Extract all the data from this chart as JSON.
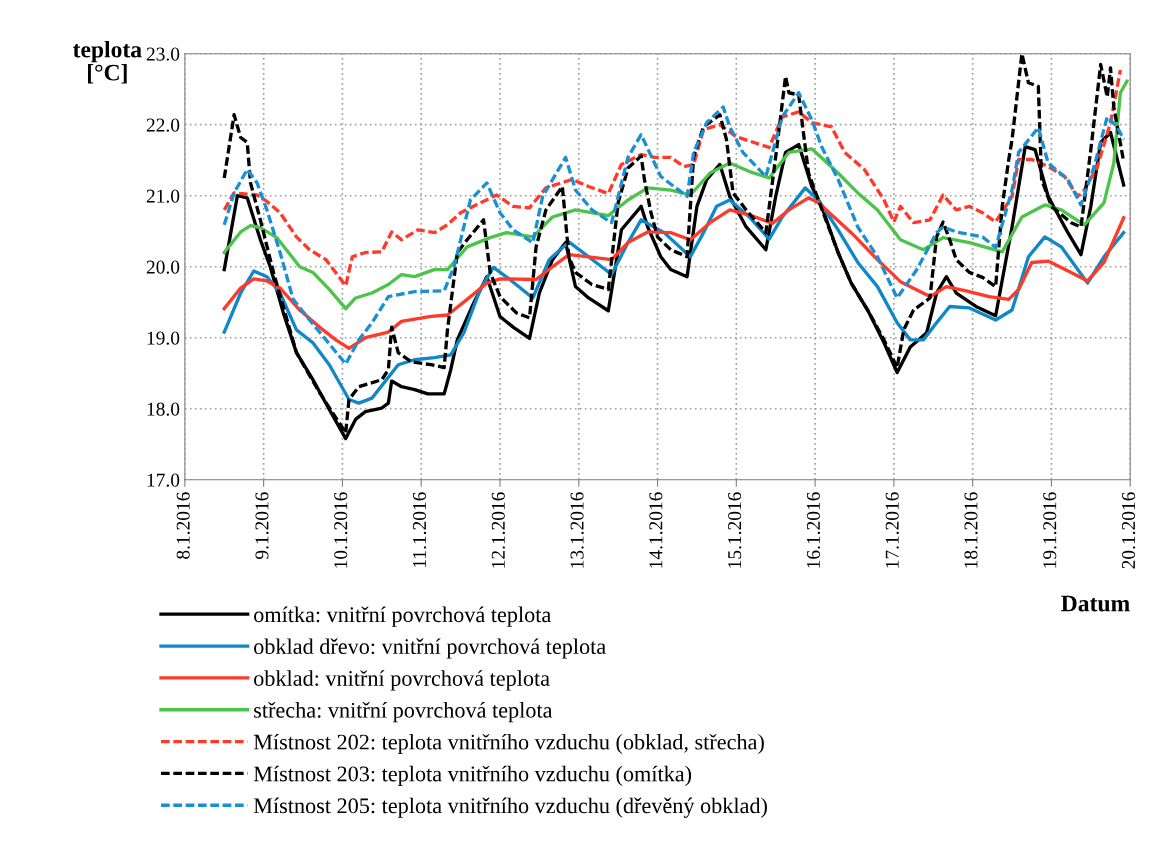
{
  "chart_data": {
    "type": "line",
    "xlabel": "Datum",
    "ylabel": "teplota\n[°C]",
    "xlim": [
      "2016-01-08",
      "2016-01-20"
    ],
    "xticks": [
      {
        "value": "2016-01-08",
        "label": "8.1.2016"
      },
      {
        "value": "2016-01-09",
        "label": "9.1.2016"
      },
      {
        "value": "2016-01-10",
        "label": "10.1.2016"
      },
      {
        "value": "2016-01-11",
        "label": "11.1.2016"
      },
      {
        "value": "2016-01-12",
        "label": "12.1.2016"
      },
      {
        "value": "2016-01-13",
        "label": "13.1.2016"
      },
      {
        "value": "2016-01-14",
        "label": "14.1.2016"
      },
      {
        "value": "2016-01-15",
        "label": "15.1.2016"
      },
      {
        "value": "2016-01-16",
        "label": "16.1.2016"
      },
      {
        "value": "2016-01-17",
        "label": "17.1.2016"
      },
      {
        "value": "2016-01-18",
        "label": "18.1.2016"
      },
      {
        "value": "2016-01-19",
        "label": "19.1.2016"
      },
      {
        "value": "2016-01-20",
        "label": "20.1.2016"
      }
    ],
    "ylim": [
      17,
      23
    ],
    "yticks": [
      {
        "value": 17,
        "label": "17.0"
      },
      {
        "value": 18,
        "label": "18.0"
      },
      {
        "value": 19,
        "label": "19.0"
      },
      {
        "value": 20,
        "label": "20.0"
      },
      {
        "value": 21,
        "label": "21.0"
      },
      {
        "value": 22,
        "label": "22.0"
      },
      {
        "value": 23,
        "label": "23.0"
      }
    ],
    "grid": true,
    "legend": "bottom",
    "marker": "none",
    "series": [
      {
        "name": "omítka: vnitřní povrchová teplota",
        "color": "#000000",
        "line_style": "solid",
        "x": [
          "2016-01-08T12:00",
          "2016-01-08T16:00",
          "2016-01-08T19:00",
          "2016-01-08T23:00",
          "2016-01-09T02:00",
          "2016-01-09T06:00",
          "2016-01-09T10:00",
          "2016-01-09T15:00",
          "2016-01-09T20:00",
          "2016-01-10T01:00",
          "2016-01-10T04:00",
          "2016-01-10T07:00",
          "2016-01-10T12:00",
          "2016-01-10T14:00",
          "2016-01-10T15:00",
          "2016-01-10T18:00",
          "2016-01-10T22:00",
          "2016-01-11T02:00",
          "2016-01-11T07:00",
          "2016-01-11T09:00",
          "2016-01-11T11:00",
          "2016-01-11T16:00",
          "2016-01-11T20:00",
          "2016-01-12T00:00",
          "2016-01-12T04:00",
          "2016-01-12T09:00",
          "2016-01-12T12:00",
          "2016-01-12T16:00",
          "2016-01-12T20:00",
          "2016-01-12T23:00",
          "2016-01-13T03:00",
          "2016-01-13T09:00",
          "2016-01-13T13:00",
          "2016-01-13T19:00",
          "2016-01-13T21:00",
          "2016-01-14T01:00",
          "2016-01-14T04:00",
          "2016-01-14T09:00",
          "2016-01-14T12:00",
          "2016-01-14T15:00",
          "2016-01-14T19:00",
          "2016-01-14T22:00",
          "2016-01-15T03:00",
          "2016-01-15T09:00",
          "2016-01-15T12:00",
          "2016-01-15T15:00",
          "2016-01-15T19:00",
          "2016-01-15T23:00",
          "2016-01-16T02:00",
          "2016-01-16T07:00",
          "2016-01-16T11:00",
          "2016-01-16T16:00",
          "2016-01-16T21:00",
          "2016-01-17T01:00",
          "2016-01-17T05:00",
          "2016-01-17T10:00",
          "2016-01-17T13:00",
          "2016-01-17T16:00",
          "2016-01-17T19:00",
          "2016-01-18T01:00",
          "2016-01-18T07:00",
          "2016-01-18T12:00",
          "2016-01-18T16:00",
          "2016-01-18T19:00",
          "2016-01-18T23:00",
          "2016-01-19T05:00",
          "2016-01-19T09:00",
          "2016-01-19T12:00",
          "2016-01-19T15:00",
          "2016-01-19T18:00",
          "2016-01-19T22:00"
        ],
        "values": [
          19.96,
          21.0,
          20.97,
          20.38,
          20.0,
          19.35,
          18.79,
          18.41,
          17.99,
          17.58,
          17.85,
          17.96,
          18.01,
          18.08,
          18.39,
          18.31,
          18.27,
          18.21,
          18.21,
          18.55,
          18.97,
          19.49,
          19.86,
          19.3,
          19.15,
          18.99,
          19.63,
          20.1,
          20.34,
          19.72,
          19.56,
          19.38,
          20.52,
          20.85,
          20.56,
          20.14,
          19.96,
          19.86,
          20.85,
          21.23,
          21.44,
          20.99,
          20.56,
          20.24,
          20.99,
          21.61,
          21.72,
          21.13,
          20.85,
          20.2,
          19.77,
          19.39,
          18.93,
          18.51,
          18.87,
          19.07,
          19.63,
          19.86,
          19.63,
          19.44,
          19.31,
          20.56,
          21.69,
          21.65,
          20.99,
          20.48,
          20.17,
          20.85,
          21.75,
          21.89,
          21.15
        ]
      },
      {
        "name": "obklad dřevo: vnitřní povrchová teplota",
        "color": "#1088c8",
        "line_style": "solid",
        "x": [
          "2016-01-08T12:00",
          "2016-01-08T17:00",
          "2016-01-08T21:00",
          "2016-01-09T01:00",
          "2016-01-09T05:00",
          "2016-01-09T10:00",
          "2016-01-09T15:00",
          "2016-01-09T20:00",
          "2016-01-10T02:00",
          "2016-01-10T05:00",
          "2016-01-10T09:00",
          "2016-01-10T17:00",
          "2016-01-10T22:00",
          "2016-01-11T04:00",
          "2016-01-11T09:00",
          "2016-01-11T13:00",
          "2016-01-11T18:00",
          "2016-01-11T22:00",
          "2016-01-12T03:00",
          "2016-01-12T10:00",
          "2016-01-12T15:00",
          "2016-01-12T21:00",
          "2016-01-13T03:00",
          "2016-01-13T10:00",
          "2016-01-13T15:00",
          "2016-01-13T19:00",
          "2016-01-14T02:00",
          "2016-01-14T10:00",
          "2016-01-14T14:00",
          "2016-01-14T18:00",
          "2016-01-14T22:00",
          "2016-01-15T04:00",
          "2016-01-15T10:00",
          "2016-01-15T14:00",
          "2016-01-15T21:00",
          "2016-01-16T01:00",
          "2016-01-16T07:00",
          "2016-01-16T13:00",
          "2016-01-16T19:00",
          "2016-01-17T01:00",
          "2016-01-17T05:00",
          "2016-01-17T09:00",
          "2016-01-17T13:00",
          "2016-01-17T17:00",
          "2016-01-17T23:00",
          "2016-01-18T07:00",
          "2016-01-18T12:00",
          "2016-01-18T17:00",
          "2016-01-18T22:00",
          "2016-01-19T03:00",
          "2016-01-19T11:00",
          "2016-01-19T16:00",
          "2016-01-19T22:00"
        ],
        "values": [
          19.08,
          19.63,
          19.94,
          19.86,
          19.63,
          19.11,
          18.93,
          18.62,
          18.13,
          18.08,
          18.15,
          18.62,
          18.69,
          18.72,
          18.76,
          19.07,
          19.68,
          19.99,
          19.82,
          19.56,
          20.1,
          20.35,
          20.14,
          19.89,
          20.34,
          20.66,
          20.48,
          20.14,
          20.48,
          20.85,
          20.94,
          20.7,
          20.39,
          20.7,
          21.11,
          20.94,
          20.52,
          20.06,
          19.72,
          19.21,
          18.97,
          18.97,
          19.21,
          19.44,
          19.42,
          19.25,
          19.39,
          20.14,
          20.42,
          20.28,
          19.77,
          20.14,
          20.48
        ]
      },
      {
        "name": "obklad: vnitřní povrchová teplota",
        "color": "#ff3a2a",
        "line_style": "solid",
        "x": [
          "2016-01-08T12:00",
          "2016-01-08T17:00",
          "2016-01-08T21:00",
          "2016-01-09T01:00",
          "2016-01-09T05:00",
          "2016-01-09T11:00",
          "2016-01-09T17:00",
          "2016-01-09T22:00",
          "2016-01-10T02:00",
          "2016-01-10T07:00",
          "2016-01-10T14:00",
          "2016-01-10T18:00",
          "2016-01-11T03:00",
          "2016-01-11T08:00",
          "2016-01-11T14:00",
          "2016-01-11T20:00",
          "2016-01-12T00:00",
          "2016-01-12T11:00",
          "2016-01-12T16:00",
          "2016-01-12T21:00",
          "2016-01-13T03:00",
          "2016-01-13T10:00",
          "2016-01-13T15:00",
          "2016-01-13T21:00",
          "2016-01-14T04:00",
          "2016-01-14T10:00",
          "2016-01-14T16:00",
          "2016-01-14T22:00",
          "2016-01-15T04:00",
          "2016-01-15T11:00",
          "2016-01-15T16:00",
          "2016-01-15T22:00",
          "2016-01-16T01:00",
          "2016-01-16T11:00",
          "2016-01-16T19:00",
          "2016-01-17T02:00",
          "2016-01-17T11:00",
          "2016-01-17T16:00",
          "2016-01-17T22:00",
          "2016-01-18T05:00",
          "2016-01-18T11:00",
          "2016-01-18T14:00",
          "2016-01-18T18:00",
          "2016-01-18T23:00",
          "2016-01-19T06:00",
          "2016-01-19T11:00",
          "2016-01-19T16:00",
          "2016-01-19T22:00"
        ],
        "values": [
          19.41,
          19.7,
          19.83,
          19.8,
          19.7,
          19.39,
          19.15,
          18.97,
          18.85,
          19.0,
          19.08,
          19.23,
          19.3,
          19.32,
          19.54,
          19.77,
          19.83,
          19.82,
          20.0,
          20.17,
          20.14,
          20.1,
          20.34,
          20.49,
          20.48,
          20.38,
          20.62,
          20.8,
          20.73,
          20.61,
          20.8,
          20.97,
          20.9,
          20.48,
          20.1,
          19.79,
          19.58,
          19.72,
          19.66,
          19.58,
          19.54,
          19.68,
          20.06,
          20.08,
          19.92,
          19.8,
          20.06,
          20.69
        ]
      },
      {
        "name": "střecha: vnitřní povrchová teplota",
        "color": "#4cc44a",
        "line_style": "solid",
        "x": [
          "2016-01-08T12:00",
          "2016-01-08T17:00",
          "2016-01-08T20:00",
          "2016-01-08T23:00",
          "2016-01-09T04:00",
          "2016-01-09T11:00",
          "2016-01-09T15:00",
          "2016-01-09T20:00",
          "2016-01-10T01:00",
          "2016-01-10T04:00",
          "2016-01-10T09:00",
          "2016-01-10T14:00",
          "2016-01-10T18:00",
          "2016-01-10T22:00",
          "2016-01-11T04:00",
          "2016-01-11T08:00",
          "2016-01-11T14:00",
          "2016-01-11T21:00",
          "2016-01-12T02:00",
          "2016-01-12T10:00",
          "2016-01-12T16:00",
          "2016-01-12T23:00",
          "2016-01-13T09:00",
          "2016-01-13T15:00",
          "2016-01-13T21:00",
          "2016-01-14T04:00",
          "2016-01-14T10:00",
          "2016-01-14T16:00",
          "2016-01-14T22:00",
          "2016-01-15T04:00",
          "2016-01-15T10:00",
          "2016-01-15T16:00",
          "2016-01-15T23:00",
          "2016-01-16T07:00",
          "2016-01-16T13:00",
          "2016-01-16T19:00",
          "2016-01-17T02:00",
          "2016-01-17T09:00",
          "2016-01-17T15:00",
          "2016-01-17T23:00",
          "2016-01-18T09:00",
          "2016-01-18T15:00",
          "2016-01-18T22:00",
          "2016-01-19T03:00",
          "2016-01-19T10:00",
          "2016-01-19T16:00",
          "2016-01-19T19:00",
          "2016-01-19T21:00",
          "2016-01-19T23:00"
        ],
        "values": [
          20.2,
          20.49,
          20.58,
          20.55,
          20.41,
          20.0,
          19.92,
          19.68,
          19.41,
          19.56,
          19.63,
          19.75,
          19.89,
          19.86,
          19.96,
          19.96,
          20.28,
          20.41,
          20.48,
          20.42,
          20.7,
          20.8,
          20.72,
          20.94,
          21.11,
          21.08,
          21.01,
          21.32,
          21.46,
          21.34,
          21.25,
          21.61,
          21.66,
          21.32,
          21.04,
          20.8,
          20.38,
          20.24,
          20.41,
          20.34,
          20.21,
          20.7,
          20.87,
          20.8,
          20.59,
          20.9,
          21.46,
          22.45,
          22.61
        ]
      },
      {
        "name": "Místnost 202: teplota vnitřního vzduchu (obklad, střecha)",
        "color": "#ff3a2a",
        "line_style": "dashed",
        "x": [
          "2016-01-08T12:00",
          "2016-01-08T15:00",
          "2016-01-08T22:00",
          "2016-01-09T01:00",
          "2016-01-09T05:00",
          "2016-01-09T10:00",
          "2016-01-09T14:00",
          "2016-01-09T19:00",
          "2016-01-10T01:00",
          "2016-01-10T03:00",
          "2016-01-10T07:00",
          "2016-01-10T12:00",
          "2016-01-10T15:00",
          "2016-01-10T18:00",
          "2016-01-10T23:00",
          "2016-01-11T04:00",
          "2016-01-11T08:00",
          "2016-01-11T12:00",
          "2016-01-11T18:00",
          "2016-01-11T23:00",
          "2016-01-12T04:00",
          "2016-01-12T09:00",
          "2016-01-12T14:00",
          "2016-01-12T22:00",
          "2016-01-13T03:00",
          "2016-01-13T09:00",
          "2016-01-13T13:00",
          "2016-01-13T19:00",
          "2016-01-13T23:00",
          "2016-01-14T04:00",
          "2016-01-14T08:00",
          "2016-01-14T11:00",
          "2016-01-14T14:00",
          "2016-01-14T19:00",
          "2016-01-15T00:00",
          "2016-01-15T10:00",
          "2016-01-15T14:00",
          "2016-01-15T19:00",
          "2016-01-15T23:00",
          "2016-01-16T05:00",
          "2016-01-16T09:00",
          "2016-01-16T15:00",
          "2016-01-16T21:00",
          "2016-01-17T00:00",
          "2016-01-17T02:00",
          "2016-01-17T06:00",
          "2016-01-17T11:00",
          "2016-01-17T15:00",
          "2016-01-17T19:00",
          "2016-01-17T23:00",
          "2016-01-18T03:00",
          "2016-01-18T07:00",
          "2016-01-18T12:00",
          "2016-01-18T14:00",
          "2016-01-18T18:00",
          "2016-01-18T23:00",
          "2016-01-19T04:00",
          "2016-01-19T08:00",
          "2016-01-19T10:00",
          "2016-01-19T14:00",
          "2016-01-19T18:00",
          "2016-01-19T21:00"
        ],
        "values": [
          20.8,
          21.04,
          21.01,
          20.92,
          20.76,
          20.42,
          20.24,
          20.1,
          19.73,
          20.14,
          20.2,
          20.21,
          20.49,
          20.38,
          20.52,
          20.48,
          20.59,
          20.76,
          20.9,
          21.01,
          20.85,
          20.83,
          21.11,
          21.23,
          21.13,
          21.03,
          21.44,
          21.58,
          21.54,
          21.54,
          21.41,
          21.44,
          21.93,
          22.0,
          21.83,
          21.68,
          22.11,
          22.18,
          22.03,
          21.97,
          21.61,
          21.37,
          20.94,
          20.63,
          20.85,
          20.62,
          20.66,
          21.01,
          20.8,
          20.85,
          20.76,
          20.63,
          20.99,
          21.51,
          21.51,
          21.41,
          21.27,
          20.99,
          21.08,
          21.41,
          22.03,
          22.77
        ]
      },
      {
        "name": "Místnost 203: teplota vnitřního vzduchu (omítka)",
        "color": "#000000",
        "line_style": "dashed",
        "x": [
          "2016-01-08T12:00",
          "2016-01-08T15:00",
          "2016-01-08T17:00",
          "2016-01-08T19:00",
          "2016-01-08T20:00",
          "2016-01-08T23:00",
          "2016-01-09T03:00",
          "2016-01-09T10:00",
          "2016-01-09T17:00",
          "2016-01-10T01:00",
          "2016-01-10T02:00",
          "2016-01-10T05:00",
          "2016-01-10T12:00",
          "2016-01-10T14:00",
          "2016-01-10T15:00",
          "2016-01-10T17:00",
          "2016-01-10T21:00",
          "2016-01-11T03:00",
          "2016-01-11T07:00",
          "2016-01-11T08:00",
          "2016-01-11T11:00",
          "2016-01-11T14:00",
          "2016-01-11T19:00",
          "2016-01-11T21:00",
          "2016-01-12T00:00",
          "2016-01-12T05:00",
          "2016-01-12T09:00",
          "2016-01-12T11:00",
          "2016-01-12T14:00",
          "2016-01-12T19:00",
          "2016-01-12T21:00",
          "2016-01-12T23:00",
          "2016-01-13T04:00",
          "2016-01-13T09:00",
          "2016-01-13T12:00",
          "2016-01-13T15:00",
          "2016-01-13T19:00",
          "2016-01-13T20:00",
          "2016-01-13T22:00",
          "2016-01-14T00:00",
          "2016-01-14T04:00",
          "2016-01-14T09:00",
          "2016-01-14T11:00",
          "2016-01-14T14:00",
          "2016-01-14T19:00",
          "2016-01-14T21:00",
          "2016-01-14T23:00",
          "2016-01-15T03:00",
          "2016-01-15T09:00",
          "2016-01-15T12:00",
          "2016-01-15T15:00",
          "2016-01-15T16:00",
          "2016-01-15T19:00",
          "2016-01-15T22:00",
          "2016-01-16T01:00",
          "2016-01-16T07:00",
          "2016-01-16T11:00",
          "2016-01-16T16:00",
          "2016-01-16T21:00",
          "2016-01-17T01:00",
          "2016-01-17T03:00",
          "2016-01-17T06:00",
          "2016-01-17T11:00",
          "2016-01-17T13:00",
          "2016-01-17T15:00",
          "2016-01-17T17:00",
          "2016-01-17T19:00",
          "2016-01-17T23:00",
          "2016-01-18T03:00",
          "2016-01-18T07:00",
          "2016-01-18T09:00",
          "2016-01-18T11:00",
          "2016-01-18T12:00",
          "2016-01-18T15:00",
          "2016-01-18T17:00",
          "2016-01-18T20:00",
          "2016-01-18T21:00",
          "2016-01-19T00:00",
          "2016-01-19T06:00",
          "2016-01-19T09:00",
          "2016-01-19T12:00",
          "2016-01-19T15:00",
          "2016-01-19T17:00",
          "2016-01-19T18:00",
          "2016-01-19T19:00",
          "2016-01-19T22:00"
        ],
        "values": [
          21.25,
          22.14,
          21.82,
          21.75,
          21.18,
          20.66,
          19.92,
          18.79,
          18.23,
          17.66,
          18.13,
          18.31,
          18.41,
          18.55,
          19.15,
          18.79,
          18.66,
          18.62,
          18.58,
          19.11,
          20.2,
          20.38,
          20.66,
          19.92,
          19.58,
          19.35,
          19.28,
          20.28,
          20.8,
          21.13,
          20.14,
          19.92,
          19.75,
          19.68,
          20.9,
          21.39,
          21.56,
          21.23,
          20.76,
          20.42,
          20.24,
          20.14,
          21.55,
          21.97,
          22.14,
          21.79,
          21.04,
          20.8,
          20.48,
          21.55,
          22.68,
          22.45,
          22.42,
          21.32,
          20.94,
          20.2,
          19.77,
          19.39,
          18.97,
          18.58,
          19.11,
          19.39,
          19.56,
          20.42,
          20.63,
          20.38,
          20.1,
          19.92,
          19.85,
          19.72,
          20.85,
          21.51,
          21.79,
          23.0,
          22.59,
          22.54,
          21.23,
          20.85,
          20.62,
          20.56,
          21.65,
          22.85,
          22.39,
          22.8,
          22.25,
          21.48
        ]
      },
      {
        "name": "Místnost 205: teplota vnitřního vzduchu (dřevěný obklad)",
        "color": "#1a90d2",
        "line_style": "dashed",
        "x": [
          "2016-01-08T12:00",
          "2016-01-08T15:00",
          "2016-01-08T19:00",
          "2016-01-08T22:00",
          "2016-01-09T01:00",
          "2016-01-09T05:00",
          "2016-01-09T09:00",
          "2016-01-09T14:00",
          "2016-01-09T19:00",
          "2016-01-10T01:00",
          "2016-01-10T05:00",
          "2016-01-10T09:00",
          "2016-01-10T14:00",
          "2016-01-10T22:00",
          "2016-01-11T07:00",
          "2016-01-11T10:00",
          "2016-01-11T15:00",
          "2016-01-11T20:00",
          "2016-01-12T00:00",
          "2016-01-12T04:00",
          "2016-01-12T10:00",
          "2016-01-12T13:00",
          "2016-01-12T20:00",
          "2016-01-12T23:00",
          "2016-01-13T04:00",
          "2016-01-13T10:00",
          "2016-01-13T15:00",
          "2016-01-13T19:00",
          "2016-01-14T01:00",
          "2016-01-14T09:00",
          "2016-01-14T11:00",
          "2016-01-14T15:00",
          "2016-01-14T20:00",
          "2016-01-14T22:00",
          "2016-01-15T02:00",
          "2016-01-15T09:00",
          "2016-01-15T14:00",
          "2016-01-15T19:00",
          "2016-01-15T23:00",
          "2016-01-16T02:00",
          "2016-01-16T07:00",
          "2016-01-16T13:00",
          "2016-01-16T19:00",
          "2016-01-17T01:00",
          "2016-01-17T07:00",
          "2016-01-17T13:00",
          "2016-01-17T15:00",
          "2016-01-17T19:00",
          "2016-01-18T03:00",
          "2016-01-18T07:00",
          "2016-01-18T12:00",
          "2016-01-18T14:00",
          "2016-01-18T20:00",
          "2016-01-18T23:00",
          "2016-01-19T05:00",
          "2016-01-19T09:00",
          "2016-01-19T13:00",
          "2016-01-19T17:00",
          "2016-01-19T20:00",
          "2016-01-19T22:00"
        ],
        "values": [
          20.59,
          21.04,
          21.37,
          21.18,
          20.8,
          20.2,
          19.54,
          19.25,
          18.97,
          18.63,
          18.97,
          19.21,
          19.58,
          19.65,
          19.66,
          20.0,
          20.94,
          21.18,
          20.76,
          20.52,
          20.34,
          20.99,
          21.54,
          21.08,
          20.8,
          20.62,
          21.54,
          21.86,
          21.27,
          20.99,
          21.61,
          22.03,
          22.25,
          21.97,
          21.61,
          21.27,
          22.11,
          22.45,
          22.07,
          21.69,
          21.23,
          20.56,
          20.14,
          19.56,
          19.96,
          20.48,
          20.56,
          20.49,
          20.42,
          20.27,
          21.08,
          21.61,
          21.96,
          21.46,
          21.23,
          20.87,
          21.41,
          22.11,
          21.97,
          21.79
        ]
      }
    ]
  }
}
